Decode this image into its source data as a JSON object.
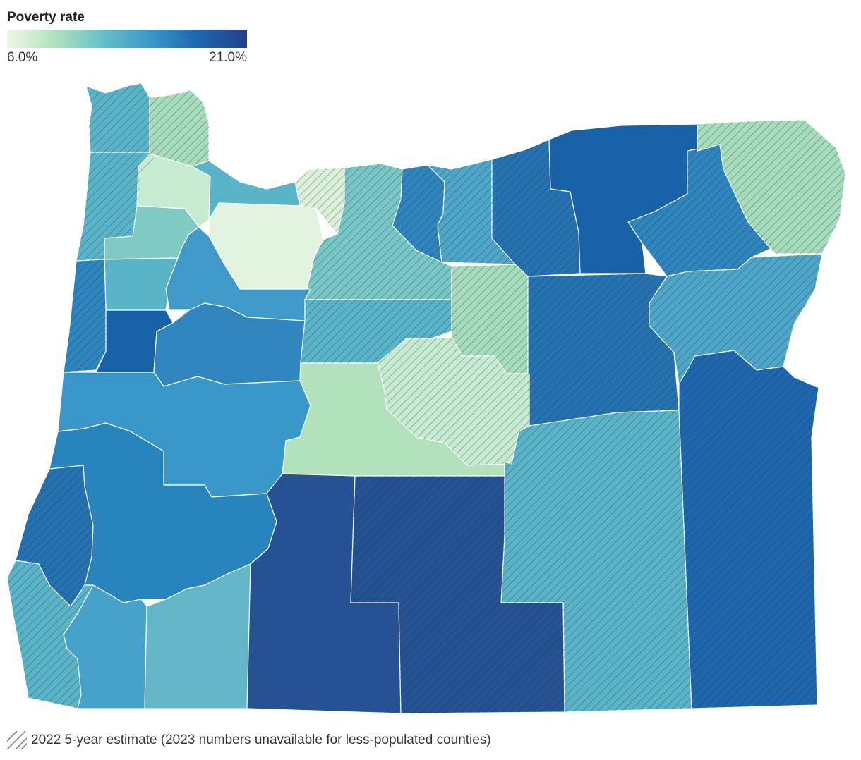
{
  "legend": {
    "title": "Poverty rate",
    "min_label": "6.0%",
    "max_label": "21.0%",
    "min_value": 6.0,
    "max_value": 21.0,
    "colors": [
      "#eef8e6",
      "#b2e2bc",
      "#66bfc6",
      "#3a97c9",
      "#1e66ad",
      "#243f8c"
    ]
  },
  "footnote": {
    "text": "2022 5-year estimate (2023 numbers unavailable for less-populated counties)",
    "icon": "hatch-pattern-icon"
  },
  "map": {
    "region": "Oregon",
    "counties": [
      {
        "id": "clatsop",
        "color": "#5ab4c8",
        "hatched": true
      },
      {
        "id": "columbia",
        "color": "#a6dcbb",
        "hatched": true
      },
      {
        "id": "tillamook",
        "color": "#5ab4c8",
        "hatched": true
      },
      {
        "id": "washington",
        "color": "#c7ebd1",
        "hatched": false
      },
      {
        "id": "multnomah",
        "color": "#5ab4c8",
        "hatched": false
      },
      {
        "id": "hood-river",
        "color": "#dbf0d8",
        "hatched": true
      },
      {
        "id": "yamhill",
        "color": "#7fcbc4",
        "hatched": false
      },
      {
        "id": "clackamas",
        "color": "#e2f4df",
        "hatched": false
      },
      {
        "id": "wasco",
        "color": "#78c7c4",
        "hatched": true
      },
      {
        "id": "sherman",
        "color": "#2f86be",
        "hatched": true
      },
      {
        "id": "gilliam",
        "color": "#4ea6c9",
        "hatched": true
      },
      {
        "id": "morrow",
        "color": "#2472b0",
        "hatched": true
      },
      {
        "id": "umatilla",
        "color": "#1862a8",
        "hatched": false
      },
      {
        "id": "union",
        "color": "#2f86be",
        "hatched": true
      },
      {
        "id": "wallowa",
        "color": "#a6dcbb",
        "hatched": true
      },
      {
        "id": "polk",
        "color": "#5ab4c8",
        "hatched": false
      },
      {
        "id": "marion",
        "color": "#3f9ac9",
        "hatched": false
      },
      {
        "id": "lincoln",
        "color": "#2f86be",
        "hatched": true
      },
      {
        "id": "benton",
        "color": "#1862a8",
        "hatched": false
      },
      {
        "id": "linn",
        "color": "#2f86be",
        "hatched": false
      },
      {
        "id": "jefferson",
        "color": "#5ab4c8",
        "hatched": true
      },
      {
        "id": "wheeler",
        "color": "#a6dcbb",
        "hatched": true
      },
      {
        "id": "grant",
        "color": "#2472b0",
        "hatched": true
      },
      {
        "id": "baker",
        "color": "#4ea6c9",
        "hatched": true
      },
      {
        "id": "lane",
        "color": "#3a97c9",
        "hatched": false
      },
      {
        "id": "deschutes",
        "color": "#b2e2bc",
        "hatched": false
      },
      {
        "id": "crook",
        "color": "#c7ebd1",
        "hatched": true
      },
      {
        "id": "harney",
        "color": "#5ab4c8",
        "hatched": true
      },
      {
        "id": "malheur",
        "color": "#1e66ad",
        "hatched": true
      },
      {
        "id": "coos",
        "color": "#2472b0",
        "hatched": true
      },
      {
        "id": "douglas",
        "color": "#2884bd",
        "hatched": false
      },
      {
        "id": "curry",
        "color": "#5ab4c8",
        "hatched": true
      },
      {
        "id": "josephine",
        "color": "#45a2cb",
        "hatched": false
      },
      {
        "id": "jackson",
        "color": "#62b6c8",
        "hatched": false
      },
      {
        "id": "klamath",
        "color": "#245292",
        "hatched": false
      },
      {
        "id": "lake",
        "color": "#245292",
        "hatched": true
      }
    ]
  }
}
